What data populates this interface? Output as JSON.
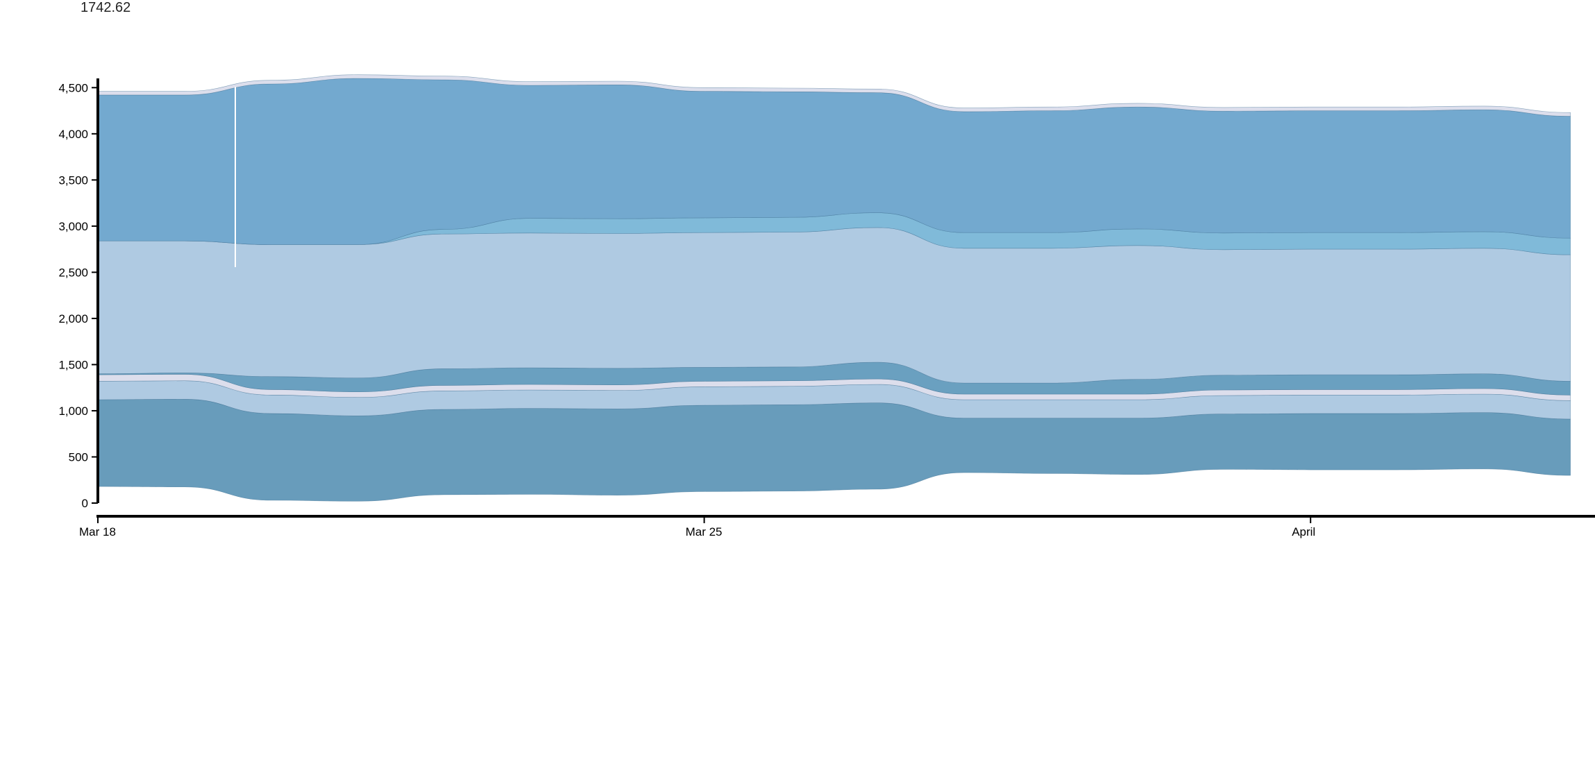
{
  "readout": {
    "value": "1742.62"
  },
  "colors": {
    "band_dark": "#689cbb",
    "band_light": "#afcae2",
    "band_mid": "#6aa0c0",
    "band_bright": "#80bad9",
    "band_top": "#73a9cf",
    "band_pale": "#dcdeec",
    "outline": "#3d6f93",
    "hover_line": "#ffffff"
  },
  "chart_data": {
    "type": "area",
    "stacked": true,
    "title": "",
    "xlabel": "",
    "ylabel": "",
    "ylim": [
      0,
      4600
    ],
    "y_ticks": [
      {
        "value": 0,
        "label": "0"
      },
      {
        "value": 500,
        "label": "500"
      },
      {
        "value": 1000,
        "label": "1,000"
      },
      {
        "value": 1500,
        "label": "1,500"
      },
      {
        "value": 2000,
        "label": "2,000"
      },
      {
        "value": 2500,
        "label": "2,500"
      },
      {
        "value": 3000,
        "label": "3,000"
      },
      {
        "value": 3500,
        "label": "3,500"
      },
      {
        "value": 4000,
        "label": "4,000"
      },
      {
        "value": 4500,
        "label": "4,500"
      }
    ],
    "x_ticks": [
      {
        "value": "Mar 18",
        "label": "Mar 18"
      },
      {
        "value": "Mar 25",
        "label": "Mar 25"
      },
      {
        "value": "Apr 1",
        "label": "April"
      }
    ],
    "x": [
      "Mar 18",
      "Mar 19",
      "Mar 20",
      "Mar 21",
      "Mar 22",
      "Mar 23",
      "Mar 24",
      "Mar 25",
      "Mar 26",
      "Mar 27",
      "Mar 28",
      "Mar 29",
      "Mar 30",
      "Mar 31",
      "Apr 1",
      "Apr 2",
      "Apr 3",
      "Apr 4"
    ],
    "baseline": [
      180,
      175,
      30,
      20,
      90,
      95,
      85,
      125,
      130,
      150,
      330,
      320,
      310,
      365,
      360,
      360,
      370,
      300
    ],
    "series": [
      {
        "color_key": "band_dark",
        "values": [
          940,
          950,
          940,
          925,
          925,
          930,
          935,
          935,
          935,
          935,
          590,
          600,
          610,
          600,
          610,
          610,
          610,
          610
        ]
      },
      {
        "color_key": "band_light",
        "values": [
          200,
          200,
          200,
          200,
          200,
          200,
          200,
          200,
          200,
          200,
          200,
          200,
          200,
          200,
          200,
          200,
          200,
          200
        ]
      },
      {
        "color_key": "band_pale",
        "values": [
          70,
          70,
          60,
          60,
          60,
          60,
          60,
          60,
          60,
          60,
          60,
          60,
          60,
          60,
          60,
          60,
          60,
          60
        ]
      },
      {
        "color_key": "band_mid",
        "values": [
          10,
          15,
          140,
          150,
          180,
          180,
          180,
          150,
          150,
          180,
          120,
          120,
          160,
          160,
          160,
          160,
          160,
          150
        ]
      },
      {
        "color_key": "band_light",
        "values": [
          1440,
          1430,
          1430,
          1445,
          1460,
          1460,
          1460,
          1460,
          1460,
          1460,
          1460,
          1460,
          1450,
          1360,
          1360,
          1360,
          1360,
          1370
        ]
      },
      {
        "color_key": "band_bright",
        "values": [
          0,
          0,
          0,
          0,
          50,
          160,
          160,
          160,
          160,
          160,
          170,
          170,
          180,
          180,
          180,
          180,
          180,
          180
        ]
      },
      {
        "color_key": "band_top",
        "values": [
          1580,
          1580,
          1740,
          1800,
          1620,
          1440,
          1450,
          1370,
          1360,
          1300,
          1310,
          1320,
          1320,
          1320,
          1320,
          1320,
          1320,
          1320
        ]
      },
      {
        "color_key": "band_pale",
        "values": [
          40,
          40,
          40,
          40,
          40,
          40,
          40,
          40,
          40,
          40,
          40,
          40,
          40,
          40,
          40,
          40,
          40,
          40
        ]
      }
    ]
  }
}
